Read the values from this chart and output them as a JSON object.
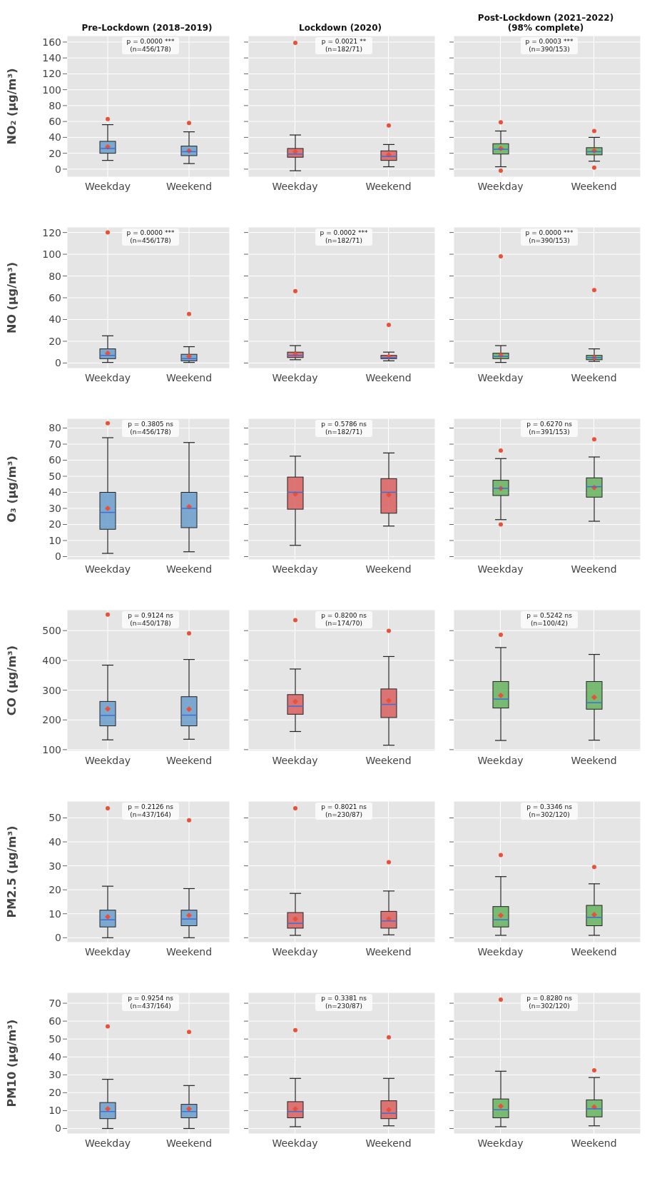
{
  "chart_data": [
    {
      "type": "box",
      "title": "Pre-Lockdown (2018–2019)",
      "ylabel": "NO₂ (µg/m³)",
      "categories": [
        "Weekday",
        "Weekend"
      ],
      "color": "#6a9ecb",
      "ylim": [
        -10,
        168
      ],
      "yticks": [
        0,
        20,
        40,
        60,
        80,
        100,
        120,
        140,
        160
      ],
      "grid": true,
      "annotations": [
        "p = 0.0000 ***",
        "(n=456/178)"
      ],
      "boxes": [
        {
          "low": 11,
          "q1": 20,
          "median": 26,
          "q3": 35,
          "high": 56,
          "mean": 28,
          "outliers": [
            63
          ]
        },
        {
          "low": 7,
          "q1": 17,
          "median": 22,
          "q3": 29,
          "high": 47,
          "mean": 23,
          "outliers": [
            58
          ]
        }
      ]
    },
    {
      "type": "box",
      "title": "Lockdown (2020)",
      "categories": [
        "Weekday",
        "Weekend"
      ],
      "color": "#d95f5f",
      "ylim": [
        -10,
        168
      ],
      "yticks": [
        0,
        20,
        40,
        60,
        80,
        100,
        120,
        140,
        160
      ],
      "grid": true,
      "tick_labels": "x",
      "annotations": [
        "p = 0.0021 **",
        "(n=182/71)"
      ],
      "boxes": [
        {
          "low": -2,
          "q1": 15,
          "median": 19,
          "q3": 26,
          "high": 43,
          "mean": 22,
          "outliers": [
            159
          ]
        },
        {
          "low": 3,
          "q1": 11,
          "median": 16,
          "q3": 23,
          "high": 31,
          "mean": 18,
          "outliers": [
            55
          ]
        }
      ]
    },
    {
      "type": "box",
      "title": "Post-Lockdown (2021–2022)",
      "subtitle": "(98% complete)",
      "categories": [
        "Weekday",
        "Weekend"
      ],
      "color": "#66b35f",
      "ylim": [
        -10,
        168
      ],
      "yticks": [
        0,
        20,
        40,
        60,
        80,
        100,
        120,
        140,
        160
      ],
      "grid": true,
      "tick_labels": "x",
      "annotations": [
        "p = 0.0003 ***",
        "(n=390/153)"
      ],
      "boxes": [
        {
          "low": 3,
          "q1": 19,
          "median": 25,
          "q3": 32,
          "high": 48,
          "mean": 26,
          "outliers": [
            -2,
            59
          ]
        },
        {
          "low": 10,
          "q1": 18,
          "median": 22,
          "q3": 27,
          "high": 40,
          "mean": 23,
          "outliers": [
            2,
            48
          ]
        }
      ]
    },
    {
      "type": "box",
      "ylabel": "NO (µg/m³)",
      "categories": [
        "Weekday",
        "Weekend"
      ],
      "color": "#6a9ecb",
      "ylim": [
        -5,
        125
      ],
      "yticks": [
        0,
        20,
        40,
        60,
        80,
        100,
        120
      ],
      "grid": true,
      "annotations": [
        "p = 0.0000 ***",
        "(n=456/178)"
      ],
      "boxes": [
        {
          "low": 0.5,
          "q1": 4,
          "median": 7,
          "q3": 13,
          "high": 25,
          "mean": 9,
          "outliers": [
            120
          ]
        },
        {
          "low": 0.5,
          "q1": 2,
          "median": 4,
          "q3": 8,
          "high": 15,
          "mean": 6,
          "outliers": [
            45
          ]
        }
      ]
    },
    {
      "type": "box",
      "categories": [
        "Weekday",
        "Weekend"
      ],
      "color": "#d95f5f",
      "ylim": [
        -5,
        125
      ],
      "yticks": [
        0,
        20,
        40,
        60,
        80,
        100,
        120
      ],
      "grid": true,
      "tick_labels": "x",
      "annotations": [
        "p = 0.0002 ***",
        "(n=182/71)"
      ],
      "boxes": [
        {
          "low": 3,
          "q1": 5,
          "median": 7,
          "q3": 10,
          "high": 16,
          "mean": 8,
          "outliers": [
            66
          ]
        },
        {
          "low": 2,
          "q1": 4,
          "median": 5,
          "q3": 7,
          "high": 10,
          "mean": 6,
          "outliers": [
            35
          ]
        }
      ]
    },
    {
      "type": "box",
      "categories": [
        "Weekday",
        "Weekend"
      ],
      "color": "#66b35f",
      "ylim": [
        -5,
        125
      ],
      "yticks": [
        0,
        20,
        40,
        60,
        80,
        100,
        120
      ],
      "grid": true,
      "tick_labels": "x",
      "annotations": [
        "p = 0.0000 ***",
        "(n=390/153)"
      ],
      "boxes": [
        {
          "low": 0.5,
          "q1": 4,
          "median": 6,
          "q3": 9,
          "high": 16,
          "mean": 7,
          "outliers": [
            98
          ]
        },
        {
          "low": 1.5,
          "q1": 3,
          "median": 5,
          "q3": 7,
          "high": 13,
          "mean": 5,
          "outliers": [
            67
          ]
        }
      ]
    },
    {
      "type": "box",
      "ylabel": "O₃ (µg/m³)",
      "categories": [
        "Weekday",
        "Weekend"
      ],
      "color": "#6a9ecb",
      "ylim": [
        -2,
        86
      ],
      "yticks": [
        0,
        10,
        20,
        30,
        40,
        50,
        60,
        70,
        80
      ],
      "grid": true,
      "annotations": [
        "p = 0.3805 ns",
        "(n=456/178)"
      ],
      "boxes": [
        {
          "low": 2,
          "q1": 17,
          "median": 27.5,
          "q3": 40,
          "high": 74,
          "mean": 30,
          "outliers": [
            83
          ]
        },
        {
          "low": 3,
          "q1": 18,
          "median": 30,
          "q3": 40,
          "high": 71,
          "mean": 31
        }
      ]
    },
    {
      "type": "box",
      "categories": [
        "Weekday",
        "Weekend"
      ],
      "color": "#d95f5f",
      "ylim": [
        -2,
        86
      ],
      "yticks": [
        0,
        10,
        20,
        30,
        40,
        50,
        60,
        70,
        80
      ],
      "grid": true,
      "tick_labels": "x",
      "annotations": [
        "p = 0.5786 ns",
        "(n=182/71)"
      ],
      "boxes": [
        {
          "low": 7,
          "q1": 29.5,
          "median": 40,
          "q3": 49.5,
          "high": 62.5,
          "mean": 39
        },
        {
          "low": 19,
          "q1": 27,
          "median": 40,
          "q3": 48.5,
          "high": 64.5,
          "mean": 38.5
        }
      ]
    },
    {
      "type": "box",
      "categories": [
        "Weekday",
        "Weekend"
      ],
      "color": "#66b35f",
      "ylim": [
        -2,
        86
      ],
      "yticks": [
        0,
        10,
        20,
        30,
        40,
        50,
        60,
        70,
        80
      ],
      "grid": true,
      "tick_labels": "x",
      "annotations": [
        "p = 0.6270 ns",
        "(n=391/153)"
      ],
      "boxes": [
        {
          "low": 23,
          "q1": 38,
          "median": 42.5,
          "q3": 47.5,
          "high": 61,
          "mean": 42.5,
          "outliers": [
            20,
            66
          ]
        },
        {
          "low": 22,
          "q1": 37,
          "median": 43.5,
          "q3": 49,
          "high": 62,
          "mean": 43,
          "outliers": [
            73
          ]
        }
      ]
    },
    {
      "type": "box",
      "ylabel": "CO (µg/m³)",
      "categories": [
        "Weekday",
        "Weekend"
      ],
      "color": "#6a9ecb",
      "ylim": [
        95,
        570
      ],
      "yticks": [
        100,
        200,
        300,
        400,
        500
      ],
      "grid": true,
      "annotations": [
        "p = 0.9124 ns",
        "(n=450/178)"
      ],
      "boxes": [
        {
          "low": 133,
          "q1": 180,
          "median": 215,
          "q3": 262,
          "high": 384,
          "mean": 237,
          "outliers": [
            554
          ]
        },
        {
          "low": 135,
          "q1": 180,
          "median": 216,
          "q3": 278,
          "high": 403,
          "mean": 236,
          "outliers": [
            491
          ]
        }
      ]
    },
    {
      "type": "box",
      "categories": [
        "Weekday",
        "Weekend"
      ],
      "color": "#d95f5f",
      "ylim": [
        95,
        570
      ],
      "yticks": [
        100,
        200,
        300,
        400,
        500
      ],
      "grid": true,
      "tick_labels": "x",
      "annotations": [
        "p = 0.8200 ns",
        "(n=174/70)"
      ],
      "boxes": [
        {
          "low": 161,
          "q1": 219,
          "median": 246,
          "q3": 285,
          "high": 371,
          "mean": 262,
          "outliers": [
            535
          ]
        },
        {
          "low": 115,
          "q1": 208,
          "median": 252,
          "q3": 304,
          "high": 413,
          "mean": 265,
          "outliers": [
            499
          ]
        }
      ]
    },
    {
      "type": "box",
      "categories": [
        "Weekday",
        "Weekend"
      ],
      "color": "#66b35f",
      "ylim": [
        95,
        570
      ],
      "yticks": [
        100,
        200,
        300,
        400,
        500
      ],
      "grid": true,
      "tick_labels": "x",
      "annotations": [
        "p = 0.5242 ns",
        "(n=100/42)"
      ],
      "boxes": [
        {
          "low": 131,
          "q1": 240,
          "median": 270,
          "q3": 329,
          "high": 443,
          "mean": 282,
          "outliers": [
            486
          ]
        },
        {
          "low": 132,
          "q1": 236,
          "median": 258,
          "q3": 329,
          "high": 420,
          "mean": 276
        }
      ]
    },
    {
      "type": "box",
      "ylabel": "PM2.5 (µg/m³)",
      "categories": [
        "Weekday",
        "Weekend"
      ],
      "color": "#6a9ecb",
      "ylim": [
        -2,
        57
      ],
      "yticks": [
        0,
        10,
        20,
        30,
        40,
        50
      ],
      "grid": true,
      "annotations": [
        "p = 0.2126 ns",
        "(n=437/164)"
      ],
      "boxes": [
        {
          "low": 0,
          "q1": 4.5,
          "median": 7.5,
          "q3": 11.5,
          "high": 21.5,
          "mean": 8.7,
          "outliers": [
            54
          ]
        },
        {
          "low": 0,
          "q1": 5,
          "median": 7.8,
          "q3": 11.5,
          "high": 20.5,
          "mean": 9.3,
          "outliers": [
            49
          ]
        }
      ]
    },
    {
      "type": "box",
      "categories": [
        "Weekday",
        "Weekend"
      ],
      "color": "#d95f5f",
      "ylim": [
        -2,
        57
      ],
      "yticks": [
        0,
        10,
        20,
        30,
        40,
        50
      ],
      "grid": true,
      "tick_labels": "x",
      "annotations": [
        "p = 0.8021 ns",
        "(n=230/87)"
      ],
      "boxes": [
        {
          "low": 1,
          "q1": 4,
          "median": 6,
          "q3": 10.5,
          "high": 18.5,
          "mean": 7.8,
          "outliers": [
            54
          ]
        },
        {
          "low": 1.2,
          "q1": 4,
          "median": 7,
          "q3": 11,
          "high": 19.5,
          "mean": 7.8,
          "outliers": [
            31.5
          ]
        }
      ]
    },
    {
      "type": "box",
      "categories": [
        "Weekday",
        "Weekend"
      ],
      "color": "#66b35f",
      "ylim": [
        -2,
        57
      ],
      "yticks": [
        0,
        10,
        20,
        30,
        40,
        50
      ],
      "grid": true,
      "tick_labels": "x",
      "annotations": [
        "p = 0.3346 ns",
        "(n=302/120)"
      ],
      "boxes": [
        {
          "low": 1,
          "q1": 4.5,
          "median": 7.5,
          "q3": 13,
          "high": 25.5,
          "mean": 9.3,
          "outliers": [
            34.5
          ]
        },
        {
          "low": 1,
          "q1": 5,
          "median": 8.5,
          "q3": 13.5,
          "high": 22.5,
          "mean": 9.6,
          "outliers": [
            29.5
          ]
        }
      ]
    },
    {
      "type": "box",
      "ylabel": "PM10 (µg/m³)",
      "categories": [
        "Weekday",
        "Weekend"
      ],
      "color": "#6a9ecb",
      "ylim": [
        -3,
        76
      ],
      "yticks": [
        0,
        10,
        20,
        30,
        40,
        50,
        60,
        70
      ],
      "grid": true,
      "annotations": [
        "p = 0.9254 ns",
        "(n=437/164)"
      ],
      "boxes": [
        {
          "low": 0,
          "q1": 5.5,
          "median": 9.5,
          "q3": 14.5,
          "high": 27.5,
          "mean": 11,
          "outliers": [
            57
          ]
        },
        {
          "low": 0,
          "q1": 6,
          "median": 9.5,
          "q3": 13.5,
          "high": 24,
          "mean": 11,
          "outliers": [
            54
          ]
        }
      ]
    },
    {
      "type": "box",
      "categories": [
        "Weekday",
        "Weekend"
      ],
      "color": "#d95f5f",
      "ylim": [
        -3,
        76
      ],
      "yticks": [
        0,
        10,
        20,
        30,
        40,
        50,
        60,
        70
      ],
      "grid": true,
      "tick_labels": "x",
      "annotations": [
        "p = 0.3381 ns",
        "(n=230/87)"
      ],
      "boxes": [
        {
          "low": 1,
          "q1": 6,
          "median": 9.5,
          "q3": 15,
          "high": 28,
          "mean": 11,
          "outliers": [
            55
          ]
        },
        {
          "low": 1.5,
          "q1": 5.5,
          "median": 8.5,
          "q3": 15.5,
          "high": 28,
          "mean": 10.5,
          "outliers": [
            51
          ]
        }
      ]
    },
    {
      "type": "box",
      "categories": [
        "Weekday",
        "Weekend"
      ],
      "color": "#66b35f",
      "ylim": [
        -3,
        76
      ],
      "yticks": [
        0,
        10,
        20,
        30,
        40,
        50,
        60,
        70
      ],
      "grid": true,
      "tick_labels": "x",
      "annotations": [
        "p = 0.8280 ns",
        "(n=302/120)"
      ],
      "boxes": [
        {
          "low": 1,
          "q1": 6,
          "median": 10.5,
          "q3": 16.5,
          "high": 32,
          "mean": 12.5,
          "outliers": [
            72
          ]
        },
        {
          "low": 1.5,
          "q1": 6.5,
          "median": 11,
          "q3": 16,
          "high": 28.5,
          "mean": 12,
          "outliers": [
            32.5
          ]
        }
      ]
    }
  ]
}
